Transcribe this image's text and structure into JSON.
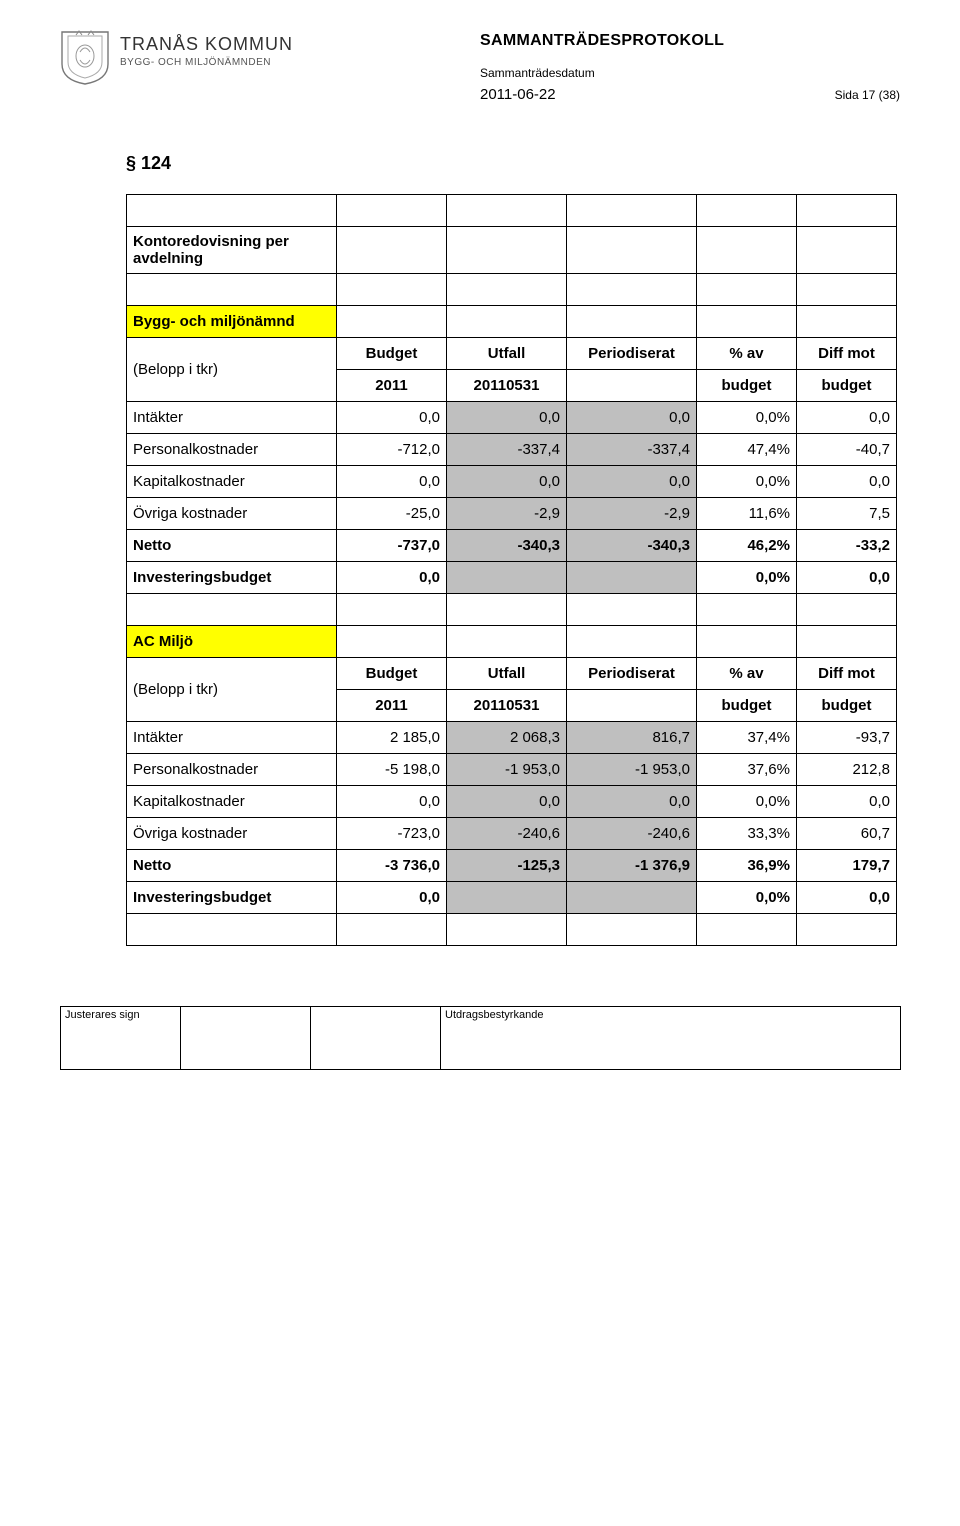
{
  "header": {
    "org_name": "TRANÅS KOMMUN",
    "org_sub": "BYGG- OCH MILJÖNÄMNDEN",
    "doc_title": "SAMMANTRÄDESPROTOKOLL",
    "meeting_label": "Sammanträdesdatum",
    "meeting_date": "2011-06-22",
    "page_num": "Sida 17 (38)"
  },
  "section_no": "§ 124",
  "table1": {
    "title_row": "Kontoredovisning per avdelning",
    "group": "Bygg- och miljönämnd",
    "head": {
      "c1": "(Belopp i tkr)",
      "c2a": "Budget",
      "c2b": "2011",
      "c3a": "Utfall",
      "c3b": "20110531",
      "c4": "Periodiserat",
      "c5a": "% av",
      "c5b": "budget",
      "c6a": "Diff mot",
      "c6b": "budget"
    },
    "rows": [
      {
        "label": "Intäkter",
        "v": [
          "0,0",
          "0,0",
          "0,0",
          "0,0%",
          "0,0"
        ],
        "grey": [
          1,
          2
        ]
      },
      {
        "label": "Personalkostnader",
        "v": [
          "-712,0",
          "-337,4",
          "-337,4",
          "47,4%",
          "-40,7"
        ],
        "grey": [
          1,
          2
        ]
      },
      {
        "label": "Kapitalkostnader",
        "v": [
          "0,0",
          "0,0",
          "0,0",
          "0,0%",
          "0,0"
        ],
        "grey": [
          1,
          2
        ]
      },
      {
        "label": "Övriga kostnader",
        "v": [
          "-25,0",
          "-2,9",
          "-2,9",
          "11,6%",
          "7,5"
        ],
        "grey": [
          1,
          2
        ]
      },
      {
        "label": "Netto",
        "v": [
          "-737,0",
          "-340,3",
          "-340,3",
          "46,2%",
          "-33,2"
        ],
        "grey": [
          1,
          2
        ],
        "bold": true
      },
      {
        "label": "Investeringsbudget",
        "v": [
          "0,0",
          "",
          "",
          "0,0%",
          "0,0"
        ],
        "grey": [
          1,
          2
        ],
        "bold": true
      }
    ]
  },
  "table2": {
    "group": "AC Miljö",
    "head": {
      "c1": "(Belopp i tkr)",
      "c2a": "Budget",
      "c2b": "2011",
      "c3a": "Utfall",
      "c3b": "20110531",
      "c4": "Periodiserat",
      "c5a": "% av",
      "c5b": "budget",
      "c6a": "Diff mot",
      "c6b": "budget"
    },
    "rows": [
      {
        "label": "Intäkter",
        "v": [
          "2 185,0",
          "2 068,3",
          "816,7",
          "37,4%",
          "-93,7"
        ],
        "grey": [
          1,
          2
        ]
      },
      {
        "label": "Personalkostnader",
        "v": [
          "-5 198,0",
          "-1 953,0",
          "-1 953,0",
          "37,6%",
          "212,8"
        ],
        "grey": [
          1,
          2
        ]
      },
      {
        "label": "Kapitalkostnader",
        "v": [
          "0,0",
          "0,0",
          "0,0",
          "0,0%",
          "0,0"
        ],
        "grey": [
          1,
          2
        ]
      },
      {
        "label": "Övriga kostnader",
        "v": [
          "-723,0",
          "-240,6",
          "-240,6",
          "33,3%",
          "60,7"
        ],
        "grey": [
          1,
          2
        ]
      },
      {
        "label": "Netto",
        "v": [
          "-3 736,0",
          "-125,3",
          "-1 376,9",
          "36,9%",
          "179,7"
        ],
        "grey": [
          1,
          2
        ],
        "bold": true
      },
      {
        "label": "Investeringsbudget",
        "v": [
          "0,0",
          "",
          "",
          "0,0%",
          "0,0"
        ],
        "grey": [
          1,
          2
        ],
        "bold": true
      }
    ]
  },
  "footer": {
    "left": "Justerares sign",
    "right": "Utdragsbestyrkande"
  },
  "colors": {
    "highlight": "#ffff00",
    "grey": "#bfbfbf",
    "border": "#000000",
    "bg": "#ffffff"
  }
}
